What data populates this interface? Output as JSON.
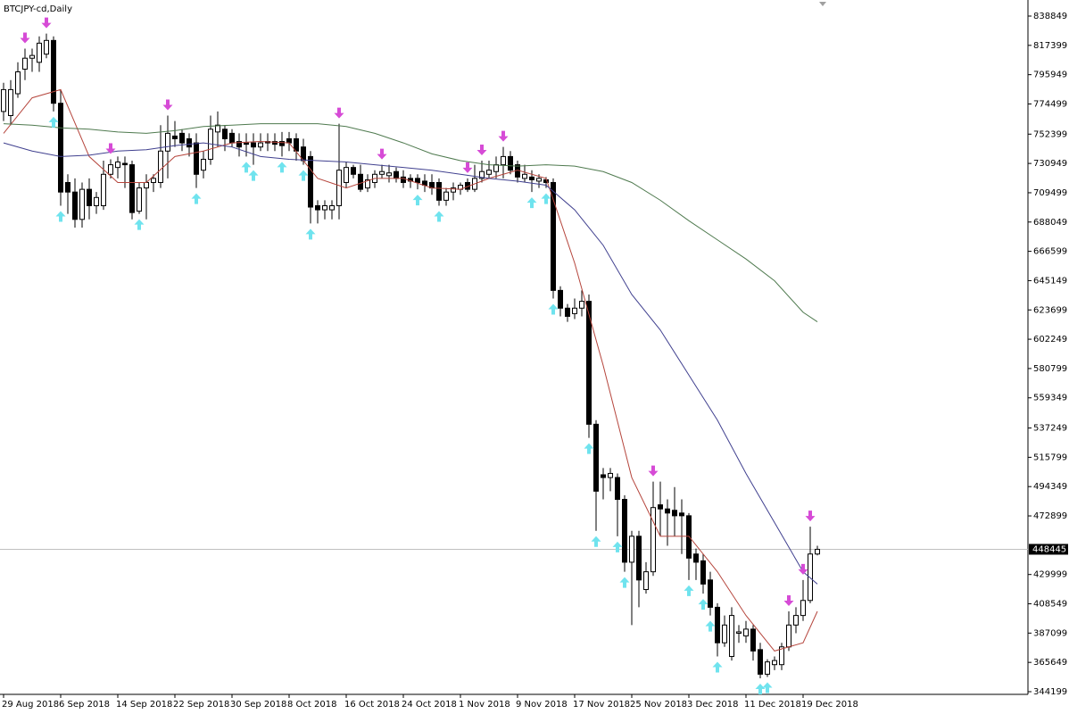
{
  "chart_data": {
    "type": "candlestick",
    "title": "BTCJPY-cd,Daily",
    "categories": [
      "29 Aug 2018",
      null,
      null,
      null,
      null,
      null,
      null,
      null,
      "6 Sep 2018",
      null,
      null,
      null,
      null,
      null,
      null,
      null,
      "14 Sep 2018",
      null,
      null,
      null,
      null,
      null,
      null,
      null,
      "22 Sep 2018",
      null,
      null,
      null,
      null,
      null,
      null,
      null,
      "30 Sep 2018",
      null,
      null,
      null,
      null,
      null,
      null,
      null,
      "8 Oct 2018",
      null,
      null,
      null,
      null,
      null,
      null,
      null,
      "16 Oct 2018",
      null,
      null,
      null,
      null,
      null,
      null,
      null,
      "24 Oct 2018",
      null,
      null,
      null,
      null,
      null,
      null,
      null,
      "1 Nov 2018",
      null,
      null,
      null,
      null,
      null,
      null,
      null,
      "9 Nov 2018",
      null,
      null,
      null,
      null,
      null,
      null,
      null,
      "17 Nov 2018",
      null,
      null,
      null,
      null,
      null,
      null,
      null,
      "25 Nov 2018",
      null,
      null,
      null,
      null,
      null,
      null,
      null,
      "3 Dec 2018",
      null,
      null,
      null,
      null,
      null,
      null,
      null,
      "11 Dec 2018",
      null,
      null,
      null,
      null,
      null,
      null,
      null,
      "19 Dec 2018",
      null,
      null
    ],
    "open": [
      769000,
      766000,
      782000,
      800000,
      808000,
      805000,
      811000,
      821000,
      775000,
      717000,
      710000,
      690000,
      712000,
      700000,
      700000,
      723000,
      728000,
      731000,
      730000,
      696000,
      713000,
      717000,
      717000,
      740000,
      751000,
      753000,
      749000,
      746000,
      726000,
      734000,
      754000,
      756000,
      753000,
      747000,
      746000,
      746000,
      743000,
      747000,
      747000,
      747000,
      749000,
      749000,
      743000,
      736000,
      700000,
      697000,
      697000,
      700000,
      717000,
      728000,
      723000,
      713000,
      717000,
      723000,
      722000,
      725000,
      721000,
      720000,
      720000,
      718000,
      717000,
      717000,
      704000,
      710000,
      712000,
      717000,
      712000,
      720000,
      723000,
      725000,
      730000,
      736000,
      730000,
      720000,
      721000,
      718000,
      719000,
      717000,
      638000,
      625000,
      621000,
      625000,
      630000,
      540000,
      503000,
      501000,
      501000,
      485000,
      439000,
      458000,
      419000,
      432000,
      481000,
      478000,
      477000,
      475000,
      473000,
      445000,
      440000,
      426000,
      406000,
      380000,
      370000,
      387000,
      385000,
      390000,
      375000,
      357000,
      364000,
      364000,
      377000,
      393000,
      400000,
      411000,
      445000
    ],
    "high": [
      790000,
      792000,
      805000,
      815000,
      815000,
      824000,
      826000,
      824000,
      785000,
      723000,
      720000,
      717000,
      720000,
      710000,
      733000,
      734000,
      736000,
      736000,
      733000,
      717000,
      723000,
      723000,
      759000,
      766000,
      762000,
      756000,
      753000,
      753000,
      740000,
      766000,
      769000,
      759000,
      756000,
      753000,
      753000,
      753000,
      753000,
      753000,
      753000,
      754000,
      754000,
      753000,
      749000,
      740000,
      704000,
      704000,
      704000,
      760000,
      732000,
      730000,
      730000,
      723000,
      726000,
      730000,
      730000,
      728000,
      726000,
      723000,
      723000,
      723000,
      723000,
      720000,
      713000,
      717000,
      717000,
      720000,
      730000,
      733000,
      733000,
      736000,
      743000,
      740000,
      733000,
      730000,
      726000,
      723000,
      721000,
      720000,
      641000,
      628000,
      632000,
      638000,
      635000,
      543000,
      508000,
      508000,
      504000,
      488000,
      462000,
      462000,
      439000,
      498000,
      498000,
      485000,
      494000,
      485000,
      475000,
      449000,
      445000,
      432000,
      409000,
      400000,
      406000,
      393000,
      396000,
      393000,
      380000,
      368000,
      370000,
      380000,
      403000,
      406000,
      426000,
      465000,
      451000
    ],
    "low": [
      762000,
      759000,
      779000,
      792000,
      798000,
      798000,
      808000,
      769000,
      700000,
      694000,
      684000,
      684000,
      690000,
      694000,
      697000,
      720000,
      720000,
      713000,
      690000,
      694000,
      690000,
      710000,
      713000,
      720000,
      743000,
      740000,
      736000,
      713000,
      720000,
      730000,
      743000,
      740000,
      743000,
      736000,
      736000,
      730000,
      740000,
      740000,
      740000,
      736000,
      740000,
      733000,
      730000,
      687000,
      687000,
      690000,
      690000,
      690000,
      713000,
      720000,
      710000,
      710000,
      713000,
      720000,
      717000,
      717000,
      713000,
      713000,
      712000,
      710000,
      708000,
      700000,
      700000,
      704000,
      708000,
      710000,
      710000,
      717000,
      720000,
      720000,
      720000,
      723000,
      717000,
      717000,
      710000,
      713000,
      713000,
      632000,
      619000,
      615000,
      617000,
      619000,
      530000,
      462000,
      485000,
      491000,
      458000,
      432000,
      393000,
      406000,
      416000,
      429000,
      458000,
      451000,
      458000,
      445000,
      426000,
      426000,
      416000,
      400000,
      370000,
      377000,
      367000,
      380000,
      380000,
      367000,
      354000,
      355000,
      360000,
      360000,
      374000,
      387000,
      396000,
      409000,
      444000
    ],
    "close": [
      785000,
      785000,
      798000,
      808000,
      810000,
      819000,
      821000,
      775000,
      710000,
      710000,
      690000,
      712000,
      700000,
      706000,
      723000,
      730000,
      732000,
      730000,
      695000,
      713000,
      717000,
      720000,
      740000,
      753000,
      749000,
      746000,
      743000,
      723000,
      734000,
      756000,
      759000,
      749000,
      746000,
      743000,
      745000,
      743000,
      746000,
      746000,
      745000,
      744000,
      746000,
      740000,
      733000,
      699000,
      697000,
      700000,
      700000,
      726000,
      728000,
      723000,
      712000,
      719000,
      723000,
      725000,
      724000,
      720000,
      717000,
      718000,
      717000,
      715000,
      713000,
      704000,
      710000,
      713000,
      715000,
      712000,
      720000,
      725000,
      726000,
      730000,
      736000,
      726000,
      721000,
      723000,
      719000,
      720000,
      717000,
      638000,
      625000,
      619000,
      625000,
      630000,
      540000,
      491000,
      501000,
      504000,
      485000,
      439000,
      458000,
      426000,
      432000,
      479000,
      478000,
      475000,
      473000,
      473000,
      442000,
      439000,
      423000,
      406000,
      380000,
      393000,
      400000,
      388000,
      390000,
      374000,
      357000,
      366000,
      367000,
      377000,
      393000,
      400000,
      411000,
      445000,
      448445
    ],
    "line_x": [
      0,
      4,
      8,
      12,
      16,
      20,
      24,
      28,
      32,
      36,
      40,
      44,
      48,
      52,
      56,
      60,
      64,
      68,
      72,
      76,
      80,
      84,
      88,
      92,
      96,
      100,
      104,
      108,
      112,
      114
    ],
    "lines": [
      {
        "color": "#b5453c",
        "values": [
          753000,
          779000,
          785000,
          736000,
          717000,
          717000,
          736000,
          740000,
          746000,
          747000,
          746000,
          720000,
          713000,
          720000,
          720000,
          713000,
          712000,
          720000,
          726000,
          720000,
          658000,
          583000,
          501000,
          458000,
          458000,
          432000,
          400000,
          374000,
          380000,
          403000
        ]
      },
      {
        "color": "#40408f",
        "values": [
          746000,
          740000,
          736000,
          737000,
          740000,
          741000,
          744000,
          746000,
          743000,
          736000,
          734000,
          733000,
          732000,
          730000,
          728000,
          726000,
          723000,
          720000,
          718000,
          715000,
          697000,
          671000,
          635000,
          609000,
          576000,
          543000,
          504000,
          468000,
          432000,
          423000
        ]
      },
      {
        "color": "#4f7a4f",
        "values": [
          760000,
          759000,
          757000,
          756000,
          754000,
          753000,
          755000,
          758000,
          759000,
          760000,
          760000,
          760000,
          758000,
          753000,
          746000,
          738000,
          733000,
          730000,
          729000,
          730000,
          729000,
          725000,
          717000,
          704000,
          689000,
          675000,
          661000,
          645000,
          622000,
          615000
        ]
      }
    ],
    "up_arrows": [
      7,
      8,
      19,
      27,
      34,
      35,
      39,
      42,
      43,
      58,
      61,
      74,
      76,
      77,
      82,
      83,
      86,
      87,
      96,
      98,
      99,
      100,
      106,
      107
    ],
    "down_arrows": [
      3,
      6,
      15,
      23,
      47,
      53,
      65,
      67,
      70,
      91,
      110,
      112,
      113
    ],
    "up_color": "#6fe3ee",
    "down_color": "#d64bd6",
    "last_price": 448445,
    "ylim": [
      342239,
      850610
    ],
    "yticks": [
      838849,
      817399,
      795949,
      774499,
      752399,
      730949,
      709499,
      688049,
      666599,
      645149,
      623699,
      602249,
      580799,
      559349,
      537249,
      515799,
      494349,
      472899,
      429999,
      408549,
      387099,
      365649,
      344199
    ]
  }
}
